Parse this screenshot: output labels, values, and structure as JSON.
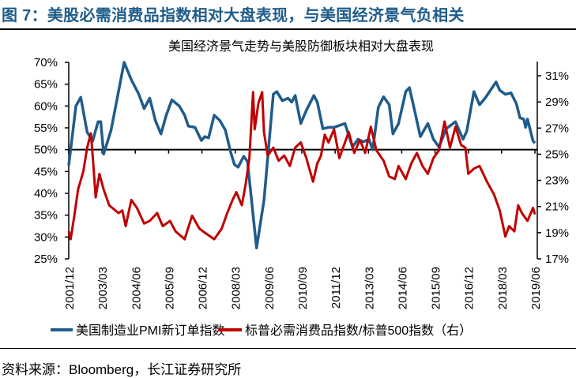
{
  "figure_title": "图 7：美股必需消费品指数相对大盘表现，与美国经济景气负相关",
  "source": "资料来源：Bloomberg，长江证券研究所",
  "colors": {
    "title": "#1f5c8b",
    "pmi": "#1f5c8b",
    "ratio": "#c00000"
  },
  "chart_data": {
    "type": "line",
    "title": "美国经济景气走势与美股防御板块相对大盘表现",
    "xlabel": "",
    "ylabel": "",
    "x_range": [
      2001.92,
      2019.42
    ],
    "x_ticks": [
      "2001/12",
      "2003/03",
      "2004/06",
      "2005/09",
      "2006/12",
      "2008/03",
      "2009/06",
      "2010/09",
      "2011/12",
      "2013/03",
      "2014/06",
      "2015/09",
      "2016/12",
      "2018/03",
      "2019/06"
    ],
    "y_left": {
      "range": [
        25,
        70
      ],
      "ticks": [
        "25%",
        "30%",
        "35%",
        "40%",
        "45%",
        "50%",
        "55%",
        "60%",
        "65%",
        "70%"
      ],
      "tick_values": [
        25,
        30,
        35,
        40,
        45,
        50,
        55,
        60,
        65,
        70
      ]
    },
    "y_right": {
      "range": [
        17,
        31.9
      ],
      "ticks": [
        "17%",
        "19%",
        "21%",
        "23%",
        "25%",
        "27%",
        "29%",
        "31%"
      ],
      "tick_values": [
        17,
        19,
        21,
        23,
        25,
        27,
        29,
        31
      ]
    },
    "reference_line": 50,
    "legend_position": "bottom",
    "series": [
      {
        "name": "美国制造业PMI新订单指数",
        "axis": "left",
        "x": [
          2001.92,
          2002.19,
          2002.37,
          2002.61,
          2002.82,
          2003.02,
          2003.12,
          2003.23,
          2003.51,
          2004.0,
          2004.27,
          2004.55,
          2004.75,
          2004.96,
          2005.17,
          2005.38,
          2005.58,
          2005.79,
          2006.07,
          2006.27,
          2006.41,
          2006.66,
          2006.9,
          2007.03,
          2007.17,
          2007.38,
          2007.59,
          2007.8,
          2008.0,
          2008.14,
          2008.28,
          2008.49,
          2008.63,
          2008.97,
          2009.25,
          2009.6,
          2009.73,
          2009.94,
          2010.15,
          2010.29,
          2010.42,
          2010.63,
          2010.84,
          2011.12,
          2011.25,
          2011.46,
          2011.67,
          2011.88,
          2012.29,
          2012.57,
          2012.78,
          2012.98,
          2013.19,
          2013.33,
          2013.54,
          2013.74,
          2013.95,
          2014.09,
          2014.3,
          2014.57,
          2014.71,
          2014.92,
          2015.12,
          2015.4,
          2015.61,
          2015.82,
          2016.09,
          2016.44,
          2016.72,
          2016.86,
          2017.13,
          2017.34,
          2017.55,
          2017.96,
          2018.1,
          2018.31,
          2018.52,
          2018.72,
          2018.86,
          2019.0,
          2019.07,
          2019.14,
          2019.35,
          2019.42
        ],
        "y": [
          46.4,
          60,
          62,
          54,
          52,
          56.4,
          56.4,
          49,
          54.5,
          70,
          66,
          62.7,
          59.4,
          61.8,
          56.7,
          53.6,
          57.9,
          61.4,
          60,
          57.9,
          55.4,
          55.1,
          52.1,
          53,
          52.7,
          57.9,
          56.7,
          54.5,
          49.4,
          46.6,
          46,
          48.5,
          47.3,
          27.5,
          38.4,
          62.7,
          63.3,
          61.2,
          61.8,
          60.9,
          62.4,
          56,
          59,
          62.4,
          60.9,
          54.8,
          55.1,
          55.1,
          56,
          50.6,
          52.4,
          51.8,
          52.4,
          50,
          59.7,
          62.1,
          60.3,
          53.6,
          56,
          63.3,
          64.2,
          58.5,
          53,
          56,
          52.4,
          50.6,
          54.8,
          56.4,
          52.4,
          54.2,
          63.3,
          60.3,
          61.8,
          65.5,
          63.6,
          62.7,
          63,
          60.6,
          57.3,
          57,
          55.1,
          57,
          52,
          51.5
        ]
      },
      {
        "name": "标普必需消费品指数/标普500指数（右）",
        "axis": "right",
        "x": [
          2001.92,
          2001.99,
          2002.13,
          2002.27,
          2002.47,
          2002.61,
          2002.75,
          2002.82,
          2002.93,
          2003.07,
          2003.23,
          2003.44,
          2003.79,
          2003.93,
          2004.06,
          2004.27,
          2004.48,
          2004.75,
          2004.96,
          2005.24,
          2005.45,
          2005.72,
          2005.93,
          2006.27,
          2006.55,
          2006.83,
          2007.1,
          2007.38,
          2007.66,
          2007.87,
          2008.07,
          2008.21,
          2008.42,
          2008.56,
          2008.7,
          2008.84,
          2008.9,
          2009.04,
          2009.18,
          2009.25,
          2009.39,
          2009.6,
          2009.8,
          2010.01,
          2010.22,
          2010.42,
          2010.63,
          2010.84,
          2011.09,
          2011.25,
          2011.39,
          2011.53,
          2011.67,
          2011.88,
          2012.08,
          2012.43,
          2012.64,
          2012.85,
          2013.05,
          2013.26,
          2013.47,
          2013.74,
          2013.95,
          2014.16,
          2014.3,
          2014.57,
          2014.78,
          2014.99,
          2015.2,
          2015.4,
          2015.61,
          2015.82,
          2016.03,
          2016.23,
          2016.44,
          2016.65,
          2016.81,
          2016.92,
          2017.13,
          2017.34,
          2017.62,
          2017.89,
          2018.1,
          2018.31,
          2018.45,
          2018.65,
          2018.79,
          2018.93,
          2019.14,
          2019.35,
          2019.42
        ],
        "y": [
          19.1,
          18.5,
          20.3,
          22.3,
          23.7,
          25.5,
          26.6,
          24.9,
          21.7,
          23.5,
          22.3,
          21.1,
          20.5,
          20.7,
          19.5,
          21.5,
          20.9,
          19.7,
          19.9,
          20.5,
          19.5,
          19.9,
          19.1,
          18.5,
          20.3,
          19.3,
          18.9,
          18.5,
          19.3,
          20.5,
          21.5,
          22.1,
          21.1,
          22.7,
          24.7,
          29.75,
          26.9,
          28.9,
          29.75,
          26.7,
          24.9,
          25.5,
          24.5,
          24.9,
          24.1,
          25.5,
          25.9,
          24.7,
          22.9,
          24.3,
          24.9,
          26.5,
          25.9,
          26.9,
          24.7,
          26.7,
          25.1,
          26.1,
          25.1,
          27.1,
          25.3,
          24.5,
          23.3,
          23.1,
          24.1,
          23.1,
          24.3,
          25.1,
          24.1,
          23.5,
          24.7,
          25.3,
          27.5,
          25.5,
          27.1,
          25.7,
          25.5,
          23.5,
          23.9,
          24.1,
          22.9,
          21.9,
          20.7,
          18.7,
          19.5,
          19.1,
          21.1,
          20.5,
          19.9,
          20.9,
          20.4
        ]
      }
    ]
  }
}
